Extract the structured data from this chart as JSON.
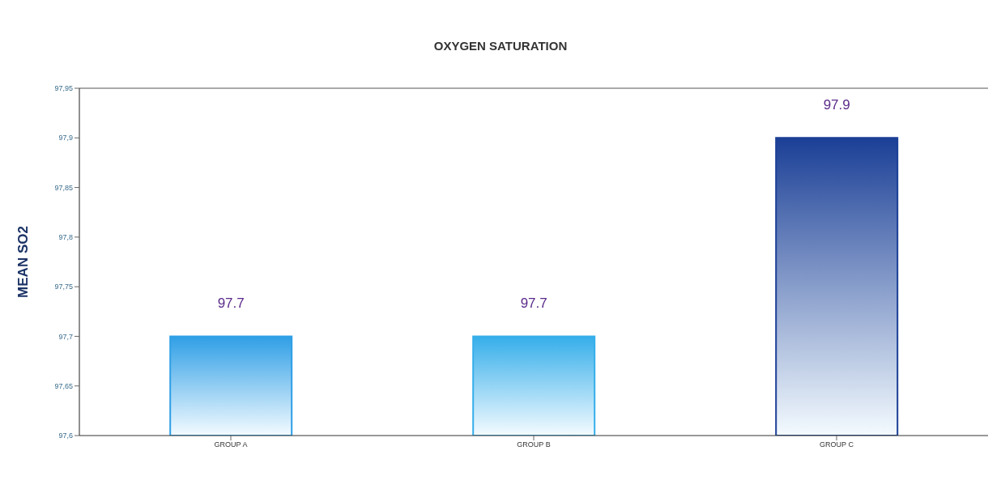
{
  "chart_data": {
    "type": "bar",
    "title": "OXYGEN SATURATION",
    "ylabel": "MEAN SO2",
    "categories": [
      "GROUP A",
      "GROUP B",
      "GROUP C"
    ],
    "values": [
      97.7,
      97.7,
      97.9
    ],
    "colors": [
      "#2f9fe6",
      "#35aeea",
      "#1b3f96"
    ],
    "ylim": [
      97.6,
      97.95
    ],
    "yticks": [
      {
        "value": 97.6,
        "label": "97,6"
      },
      {
        "value": 97.65,
        "label": "97,65"
      },
      {
        "value": 97.7,
        "label": "97,7"
      },
      {
        "value": 97.75,
        "label": "97,75"
      },
      {
        "value": 97.8,
        "label": "97,8"
      },
      {
        "value": 97.85,
        "label": "97,85"
      },
      {
        "value": 97.9,
        "label": "97,9"
      },
      {
        "value": 97.95,
        "label": "97,95"
      }
    ],
    "data_labels": true,
    "grid": false,
    "legend": false
  }
}
